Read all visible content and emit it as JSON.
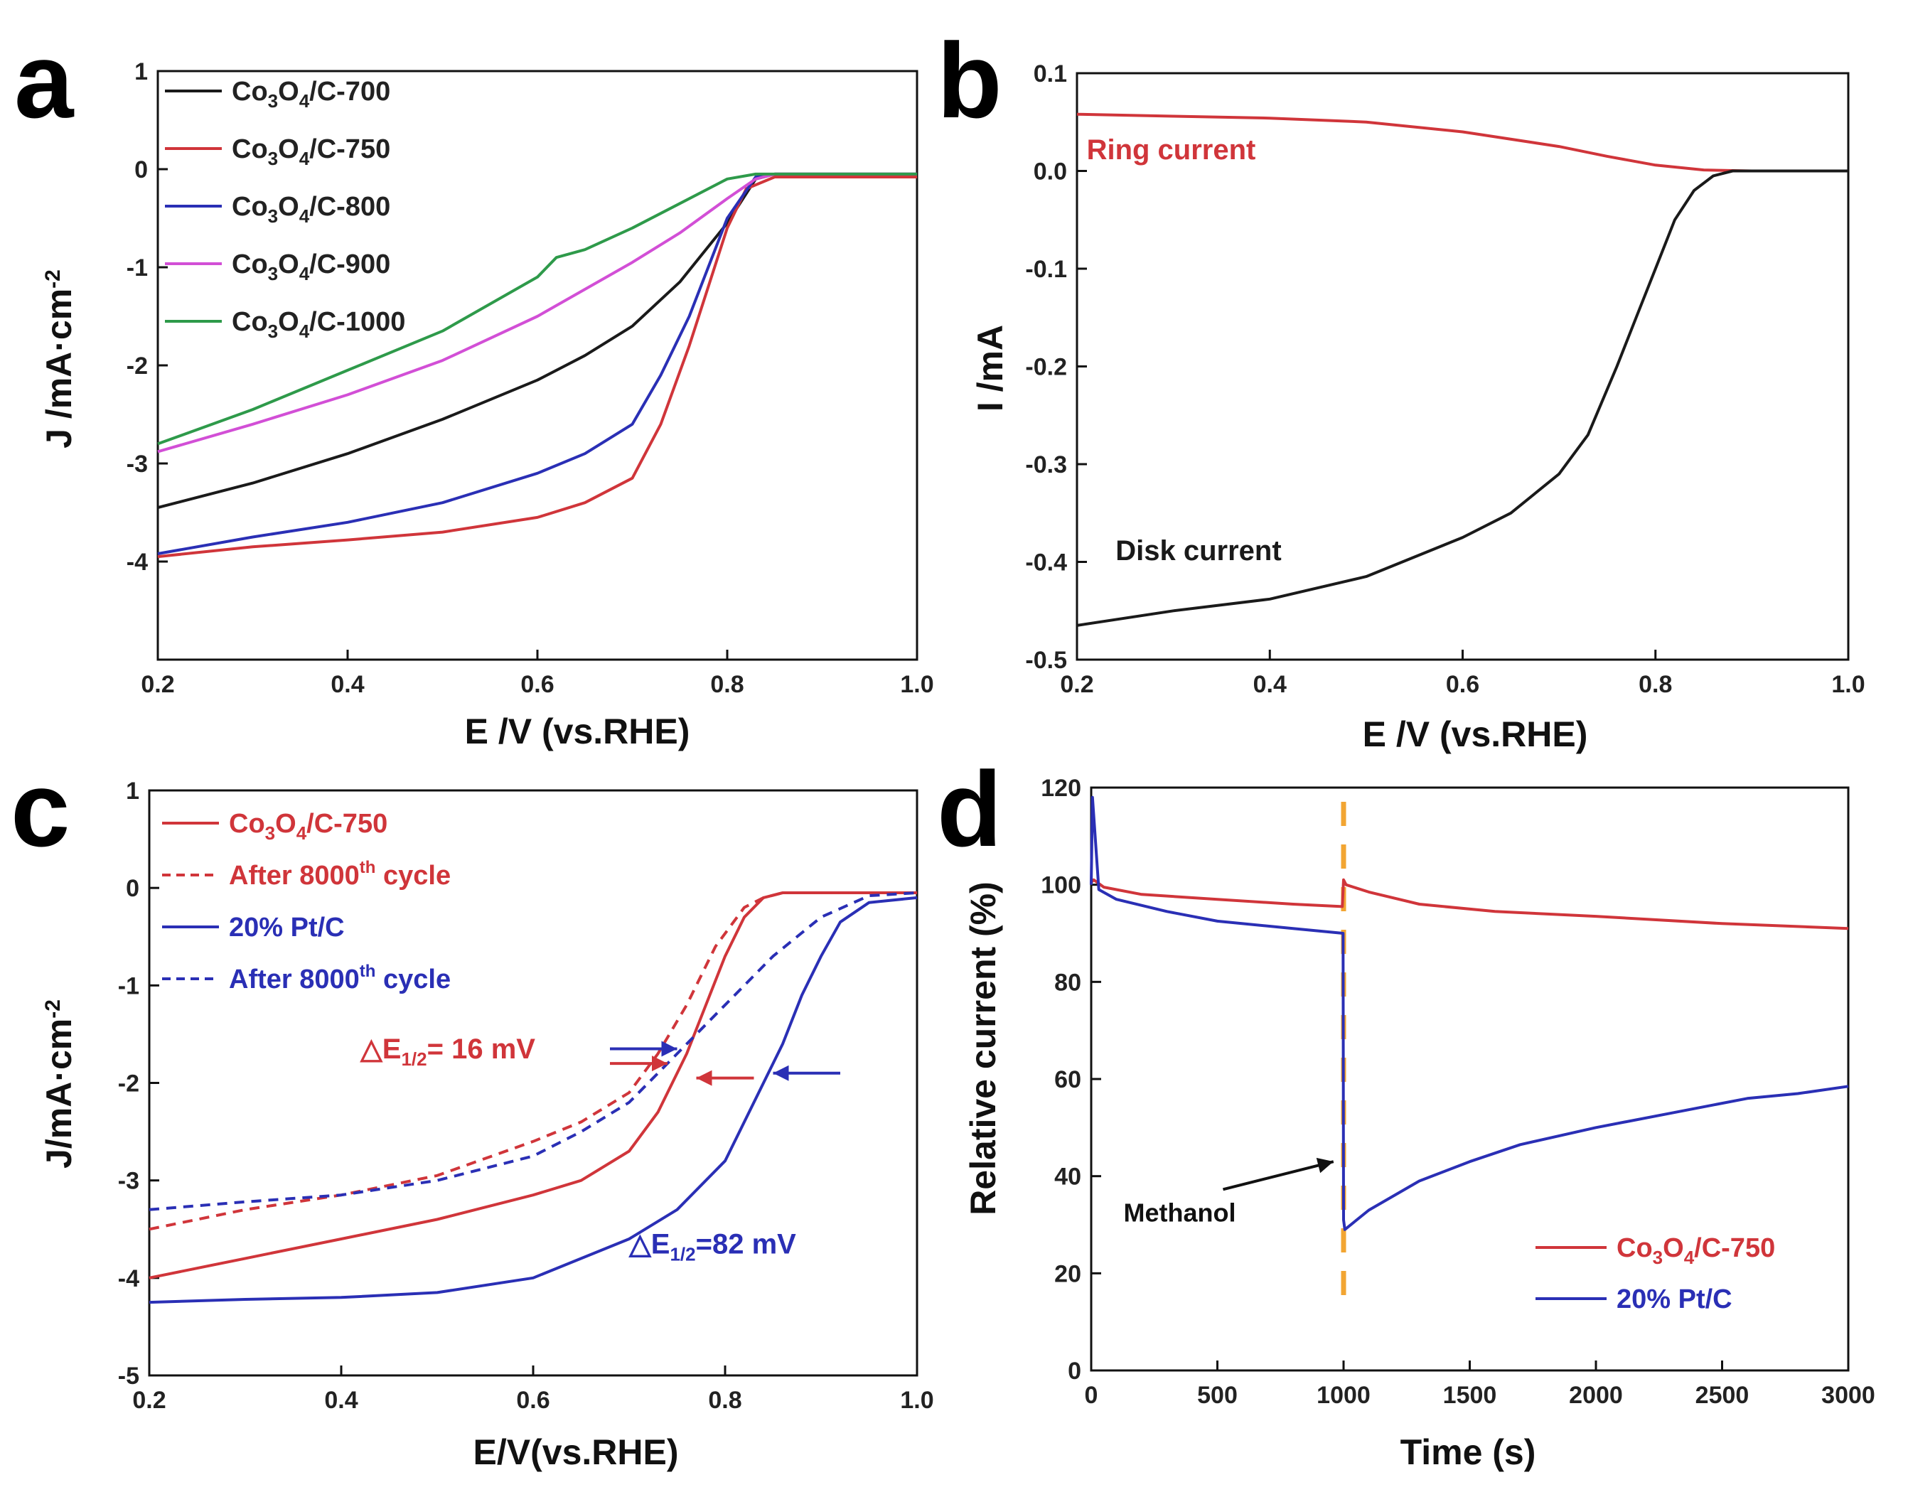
{
  "colors": {
    "black": "#1a1a1a",
    "red": "#d0353a",
    "blue": "#2a2fb5",
    "magenta": "#d24fd6",
    "green": "#2e9a4a",
    "orange": "#f2a532"
  },
  "chart_data": [
    {
      "id": "a",
      "panel_letter": "a",
      "type": "line",
      "xlabel": "E /V (vs.RHE)",
      "ylabel_main": "J /mA·cm",
      "ylabel_sup": "-2",
      "xlim": [
        0.2,
        1.0
      ],
      "ylim": [
        -5,
        1
      ],
      "xticks": [
        0.2,
        0.4,
        0.6,
        0.8,
        1.0
      ],
      "xtick_labels": [
        "0.2",
        "0.4",
        "0.6",
        "0.8",
        "1.0"
      ],
      "yticks": [
        1,
        0,
        -1,
        -2,
        -3,
        -4
      ],
      "ytick_labels": [
        "1",
        "0",
        "-1",
        "-2",
        "-3",
        "-4"
      ],
      "legend": [
        {
          "color": "black",
          "dash": false,
          "parts": [
            [
              "Co",
              ""
            ],
            [
              "3",
              "sub"
            ],
            [
              "O",
              ""
            ],
            [
              "4",
              "sub"
            ],
            [
              "/C-700",
              ""
            ]
          ]
        },
        {
          "color": "red",
          "dash": false,
          "parts": [
            [
              "Co",
              ""
            ],
            [
              "3",
              "sub"
            ],
            [
              "O",
              ""
            ],
            [
              "4",
              "sub"
            ],
            [
              "/C-750",
              ""
            ]
          ]
        },
        {
          "color": "blue",
          "dash": false,
          "parts": [
            [
              "Co",
              ""
            ],
            [
              "3",
              "sub"
            ],
            [
              "O",
              ""
            ],
            [
              "4",
              "sub"
            ],
            [
              "/C-800",
              ""
            ]
          ]
        },
        {
          "color": "magenta",
          "dash": false,
          "parts": [
            [
              "Co",
              ""
            ],
            [
              "3",
              "sub"
            ],
            [
              "O",
              ""
            ],
            [
              "4",
              "sub"
            ],
            [
              "/C-900",
              ""
            ]
          ]
        },
        {
          "color": "green",
          "dash": false,
          "parts": [
            [
              "Co",
              ""
            ],
            [
              "3",
              "sub"
            ],
            [
              "O",
              ""
            ],
            [
              "4",
              "sub"
            ],
            [
              "/C-1000",
              ""
            ]
          ]
        }
      ],
      "series": [
        {
          "name": "Co3O4/C-700",
          "color": "black",
          "dash": false,
          "x": [
            0.2,
            0.3,
            0.4,
            0.5,
            0.6,
            0.65,
            0.7,
            0.75,
            0.8,
            0.83,
            0.85,
            0.9,
            1.0
          ],
          "y": [
            -3.45,
            -3.2,
            -2.9,
            -2.55,
            -2.15,
            -1.9,
            -1.6,
            -1.15,
            -0.55,
            -0.1,
            -0.05,
            -0.05,
            -0.05
          ]
        },
        {
          "name": "Co3O4/C-750",
          "color": "red",
          "dash": false,
          "x": [
            0.2,
            0.3,
            0.4,
            0.5,
            0.6,
            0.65,
            0.7,
            0.73,
            0.76,
            0.78,
            0.8,
            0.82,
            0.85,
            0.9,
            1.0
          ],
          "y": [
            -3.95,
            -3.85,
            -3.78,
            -3.7,
            -3.55,
            -3.4,
            -3.15,
            -2.6,
            -1.8,
            -1.2,
            -0.6,
            -0.2,
            -0.08,
            -0.08,
            -0.08
          ]
        },
        {
          "name": "Co3O4/C-800",
          "color": "blue",
          "dash": false,
          "x": [
            0.2,
            0.3,
            0.4,
            0.5,
            0.6,
            0.65,
            0.7,
            0.73,
            0.76,
            0.78,
            0.8,
            0.83,
            0.85,
            0.9,
            1.0
          ],
          "y": [
            -3.92,
            -3.75,
            -3.6,
            -3.4,
            -3.1,
            -2.9,
            -2.6,
            -2.1,
            -1.5,
            -1.0,
            -0.5,
            -0.08,
            -0.05,
            -0.05,
            -0.05
          ]
        },
        {
          "name": "Co3O4/C-900",
          "color": "magenta",
          "dash": false,
          "x": [
            0.2,
            0.3,
            0.4,
            0.5,
            0.6,
            0.7,
            0.75,
            0.8,
            0.83,
            0.85,
            0.9,
            1.0
          ],
          "y": [
            -2.88,
            -2.6,
            -2.3,
            -1.95,
            -1.5,
            -0.95,
            -0.65,
            -0.3,
            -0.1,
            -0.05,
            -0.05,
            -0.05
          ]
        },
        {
          "name": "Co3O4/C-1000",
          "color": "green",
          "dash": false,
          "x": [
            0.2,
            0.3,
            0.4,
            0.5,
            0.6,
            0.62,
            0.65,
            0.7,
            0.75,
            0.8,
            0.83,
            0.85,
            0.9,
            1.0
          ],
          "y": [
            -2.8,
            -2.45,
            -2.05,
            -1.65,
            -1.1,
            -0.9,
            -0.82,
            -0.6,
            -0.35,
            -0.1,
            -0.05,
            -0.05,
            -0.05,
            -0.05
          ]
        }
      ]
    },
    {
      "id": "b",
      "panel_letter": "b",
      "type": "line",
      "xlabel": "E /V (vs.RHE)",
      "ylabel_main": "I /mA",
      "ylabel_sup": "",
      "xlim": [
        0.2,
        1.0
      ],
      "ylim": [
        -0.5,
        0.1
      ],
      "xticks": [
        0.2,
        0.4,
        0.6,
        0.8,
        1.0
      ],
      "xtick_labels": [
        "0.2",
        "0.4",
        "0.6",
        "0.8",
        "1.0"
      ],
      "yticks": [
        0.1,
        0.0,
        -0.1,
        -0.2,
        -0.3,
        -0.4,
        -0.5
      ],
      "ytick_labels": [
        "0.1",
        "0.0",
        "-0.1",
        "-0.2",
        "-0.3",
        "-0.4",
        "-0.5"
      ],
      "annotations": [
        {
          "text": "Ring current",
          "color": "red",
          "x": 0.21,
          "y": 0.012
        },
        {
          "text": "Disk current",
          "color": "black",
          "x": 0.24,
          "y": -0.398
        }
      ],
      "series": [
        {
          "name": "Ring current",
          "color": "red",
          "dash": false,
          "x": [
            0.2,
            0.3,
            0.4,
            0.5,
            0.6,
            0.7,
            0.75,
            0.8,
            0.85,
            0.9,
            1.0
          ],
          "y": [
            0.058,
            0.056,
            0.054,
            0.05,
            0.04,
            0.025,
            0.015,
            0.006,
            0.001,
            0.0,
            0.0
          ]
        },
        {
          "name": "Disk current",
          "color": "black",
          "dash": false,
          "x": [
            0.2,
            0.3,
            0.4,
            0.5,
            0.6,
            0.65,
            0.7,
            0.73,
            0.76,
            0.78,
            0.8,
            0.82,
            0.84,
            0.86,
            0.88,
            0.9,
            1.0
          ],
          "y": [
            -0.465,
            -0.45,
            -0.438,
            -0.415,
            -0.375,
            -0.35,
            -0.31,
            -0.27,
            -0.2,
            -0.15,
            -0.1,
            -0.05,
            -0.02,
            -0.005,
            0.0,
            0.0,
            0.0
          ]
        }
      ]
    },
    {
      "id": "c",
      "panel_letter": "c",
      "type": "line",
      "xlabel": "E/V(vs.RHE)",
      "ylabel_main": "J/mA·cm",
      "ylabel_sup": "-2",
      "xlim": [
        0.2,
        1.0
      ],
      "ylim": [
        -5,
        1
      ],
      "xticks": [
        0.2,
        0.4,
        0.6,
        0.8,
        1.0
      ],
      "xtick_labels": [
        "0.2",
        "0.4",
        "0.6",
        "0.8",
        "1.0"
      ],
      "yticks": [
        1,
        0,
        -1,
        -2,
        -3,
        -4,
        -5
      ],
      "ytick_labels": [
        "1",
        "0",
        "-1",
        "-2",
        "-3",
        "-4",
        "-5"
      ],
      "legend": [
        {
          "color": "red",
          "dash": false,
          "parts": [
            [
              "Co",
              ""
            ],
            [
              "3",
              "sub"
            ],
            [
              "O",
              ""
            ],
            [
              "4",
              "sub"
            ],
            [
              "/C-750",
              ""
            ]
          ]
        },
        {
          "color": "red",
          "dash": true,
          "parts": [
            [
              "After 8000",
              ""
            ],
            [
              "th",
              "sup"
            ],
            [
              "  cycle",
              ""
            ]
          ]
        },
        {
          "color": "blue",
          "dash": false,
          "parts": [
            [
              "20% Pt/C",
              ""
            ]
          ]
        },
        {
          "color": "blue",
          "dash": true,
          "parts": [
            [
              "After 8000",
              ""
            ],
            [
              "th",
              "sup"
            ],
            [
              "  cycle",
              ""
            ]
          ]
        }
      ],
      "annotations": [
        {
          "color": "red",
          "x": 0.42,
          "y": -1.75,
          "parts": [
            [
              "△E",
              ""
            ],
            [
              "1/2",
              "sub"
            ],
            [
              "= 16 mV",
              ""
            ]
          ]
        },
        {
          "color": "blue",
          "x": 0.7,
          "y": -3.75,
          "parts": [
            [
              "△E",
              ""
            ],
            [
              "1/2",
              "sub"
            ],
            [
              "=82 mV",
              ""
            ]
          ]
        }
      ],
      "arrows": [
        {
          "color": "blue",
          "from": [
            0.68,
            -1.65
          ],
          "to": [
            0.75,
            -1.65
          ]
        },
        {
          "color": "red",
          "from": [
            0.68,
            -1.8
          ],
          "to": [
            0.74,
            -1.8
          ]
        },
        {
          "color": "red",
          "from": [
            0.83,
            -1.95
          ],
          "to": [
            0.77,
            -1.95
          ]
        },
        {
          "color": "blue",
          "from": [
            0.92,
            -1.9
          ],
          "to": [
            0.85,
            -1.9
          ]
        }
      ],
      "series": [
        {
          "name": "Co3O4/C-750",
          "color": "red",
          "dash": false,
          "x": [
            0.2,
            0.3,
            0.4,
            0.5,
            0.6,
            0.65,
            0.7,
            0.73,
            0.76,
            0.78,
            0.8,
            0.82,
            0.84,
            0.86,
            0.9,
            1.0
          ],
          "y": [
            -4.0,
            -3.8,
            -3.6,
            -3.4,
            -3.15,
            -3.0,
            -2.7,
            -2.3,
            -1.7,
            -1.2,
            -0.7,
            -0.3,
            -0.1,
            -0.05,
            -0.05,
            -0.05
          ]
        },
        {
          "name": "Co3O4/C-750 After 8000th cycle",
          "color": "red",
          "dash": true,
          "x": [
            0.2,
            0.3,
            0.4,
            0.5,
            0.6,
            0.65,
            0.7,
            0.73,
            0.76,
            0.79,
            0.82,
            0.84,
            0.86,
            0.9,
            1.0
          ],
          "y": [
            -3.5,
            -3.3,
            -3.15,
            -2.95,
            -2.6,
            -2.4,
            -2.1,
            -1.7,
            -1.2,
            -0.6,
            -0.2,
            -0.1,
            -0.05,
            -0.05,
            -0.05
          ]
        },
        {
          "name": "20% Pt/C",
          "color": "blue",
          "dash": false,
          "x": [
            0.2,
            0.3,
            0.4,
            0.5,
            0.6,
            0.7,
            0.75,
            0.8,
            0.82,
            0.84,
            0.86,
            0.88,
            0.9,
            0.92,
            0.95,
            1.0
          ],
          "y": [
            -4.25,
            -4.22,
            -4.2,
            -4.15,
            -4.0,
            -3.6,
            -3.3,
            -2.8,
            -2.4,
            -2.0,
            -1.6,
            -1.1,
            -0.7,
            -0.35,
            -0.15,
            -0.1
          ]
        },
        {
          "name": "20% Pt/C After 8000th cycle",
          "color": "blue",
          "dash": true,
          "x": [
            0.2,
            0.3,
            0.4,
            0.5,
            0.6,
            0.65,
            0.7,
            0.75,
            0.8,
            0.85,
            0.9,
            0.95,
            1.0
          ],
          "y": [
            -3.3,
            -3.22,
            -3.15,
            -3.0,
            -2.75,
            -2.5,
            -2.2,
            -1.7,
            -1.2,
            -0.7,
            -0.3,
            -0.08,
            -0.05
          ]
        }
      ]
    },
    {
      "id": "d",
      "panel_letter": "d",
      "type": "line",
      "xlabel": "Time (s)",
      "ylabel_main": "Relative current (%)",
      "ylabel_sup": "",
      "xlim": [
        0,
        3000
      ],
      "ylim": [
        0,
        120
      ],
      "xticks": [
        0,
        500,
        1000,
        1500,
        2000,
        2500,
        3000
      ],
      "xtick_labels": [
        "0",
        "500",
        "1000",
        "1500",
        "2000",
        "2500",
        "3000"
      ],
      "yticks": [
        0,
        20,
        40,
        60,
        80,
        100,
        120
      ],
      "ytick_labels": [
        "0",
        "20",
        "40",
        "60",
        "80",
        "100",
        "120"
      ],
      "legend": [
        {
          "color": "red",
          "dash": false,
          "parts": [
            [
              "Co",
              ""
            ],
            [
              "3",
              "sub"
            ],
            [
              "O",
              ""
            ],
            [
              "4",
              "sub"
            ],
            [
              "/C-750",
              ""
            ]
          ]
        },
        {
          "color": "blue",
          "dash": false,
          "parts": [
            [
              "20% Pt/C",
              ""
            ]
          ]
        }
      ],
      "methanol_label": "Methanol",
      "methanol_time": 1000,
      "methanol_arrow": {
        "from": [
          100,
          38
        ],
        "to": [
          960,
          43
        ]
      },
      "series": [
        {
          "name": "Co3O4/C-750",
          "color": "red",
          "dash": false,
          "x": [
            0,
            10,
            50,
            200,
            500,
            800,
            995,
            1000,
            1010,
            1100,
            1300,
            1600,
            2000,
            2500,
            3000
          ],
          "y": [
            100.5,
            101,
            99.5,
            98,
            97,
            96,
            95.5,
            101,
            100,
            98.5,
            96,
            94.5,
            93.5,
            92,
            91
          ]
        },
        {
          "name": "20% Pt/C",
          "color": "blue",
          "dash": false,
          "x": [
            0,
            5,
            30,
            100,
            300,
            500,
            800,
            998,
            1000,
            1005,
            1100,
            1300,
            1500,
            1700,
            2000,
            2300,
            2600,
            2800,
            3000
          ],
          "y": [
            100,
            118,
            99,
            97,
            94.5,
            92.5,
            91,
            90,
            31,
            29,
            33,
            39,
            43,
            46.5,
            50,
            53,
            56,
            57,
            58.5
          ]
        }
      ]
    }
  ]
}
